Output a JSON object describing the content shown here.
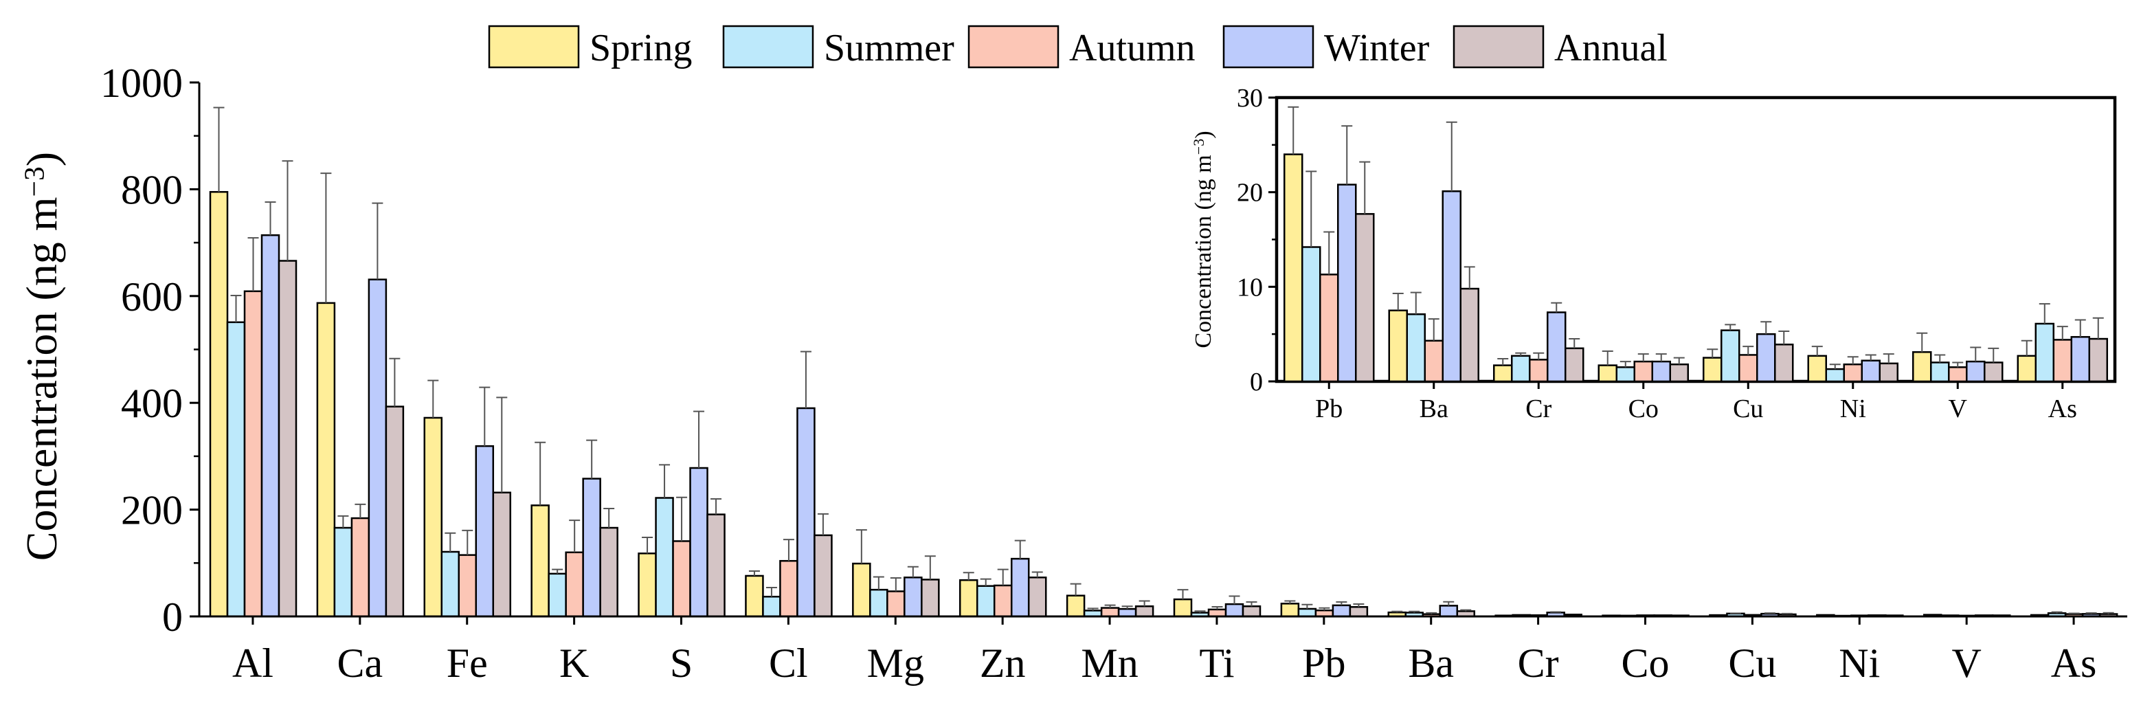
{
  "chart_data": [
    {
      "type": "bar",
      "ylabel": "Concentration (ng m⁻³)",
      "ylabel_base": "Concentration (ng m",
      "ylabel_exp": "−3",
      "ylabel_close": ")",
      "ylim": [
        0,
        1000
      ],
      "yticks": [
        0,
        200,
        400,
        600,
        800,
        1000
      ],
      "grid": false,
      "legend": "top",
      "categories": [
        "Al",
        "Ca",
        "Fe",
        "K",
        "S",
        "Cl",
        "Mg",
        "Zn",
        "Mn",
        "Ti",
        "Pb",
        "Ba",
        "Cr",
        "Co",
        "Cu",
        "Ni",
        "V",
        "As"
      ],
      "series": [
        {
          "name": "Spring",
          "color": "#FFEE99",
          "values": [
            795,
            587,
            372,
            208,
            118,
            76,
            99,
            68,
            39,
            32,
            24,
            7.5,
            1.7,
            1.7,
            2.5,
            2.7,
            3.1,
            2.7
          ],
          "errors": [
            158,
            243,
            70,
            118,
            30,
            9,
            63,
            14,
            22,
            18,
            5,
            1.8,
            0.7,
            1.5,
            0.9,
            1.0,
            2.0,
            1.6
          ]
        },
        {
          "name": "Summer",
          "color": "#BDE9FB",
          "values": [
            551,
            166,
            121,
            80,
            222,
            37,
            50,
            57,
            11,
            7,
            14.2,
            7.1,
            2.7,
            1.5,
            5.4,
            1.3,
            2.0,
            6.1
          ],
          "errors": [
            50,
            22,
            35,
            8,
            62,
            17,
            24,
            13,
            4,
            3,
            8,
            2.3,
            0.3,
            0.6,
            0.6,
            0.5,
            0.8,
            2.1
          ]
        },
        {
          "name": "Autumn",
          "color": "#FCC6B6",
          "values": [
            609,
            184,
            115,
            120,
            141,
            104,
            47,
            58,
            16,
            13,
            11.3,
            4.3,
            2.3,
            2.1,
            2.8,
            1.8,
            1.5,
            4.4
          ],
          "errors": [
            100,
            26,
            46,
            60,
            82,
            40,
            25,
            30,
            5,
            5,
            4.5,
            2.3,
            0.7,
            0.8,
            0.9,
            0.8,
            0.5,
            1.4
          ]
        },
        {
          "name": "Winter",
          "color": "#BCCBFC",
          "values": [
            714,
            631,
            319,
            258,
            278,
            390,
            73,
            108,
            14,
            23,
            20.8,
            20.1,
            7.3,
            2.1,
            5.0,
            2.2,
            2.1,
            4.7
          ],
          "errors": [
            62,
            143,
            110,
            72,
            106,
            106,
            20,
            34,
            5,
            15,
            6.2,
            7.3,
            1.0,
            0.8,
            1.3,
            0.6,
            1.5,
            1.8
          ]
        },
        {
          "name": "Annual",
          "color": "#D4C4C5",
          "values": [
            666,
            393,
            232,
            166,
            191,
            152,
            69,
            73,
            19,
            19,
            17.7,
            9.8,
            3.5,
            1.8,
            3.9,
            1.9,
            2.0,
            4.5
          ],
          "errors": [
            187,
            90,
            178,
            36,
            29,
            40,
            44,
            10,
            10,
            8,
            5.5,
            2.3,
            1.0,
            0.7,
            1.4,
            1.0,
            1.5,
            2.2
          ]
        }
      ]
    },
    {
      "type": "bar",
      "ylabel": "Concentration (ng m⁻³)",
      "ylabel_base": "Concentration (ng m",
      "ylabel_exp": "−3",
      "ylabel_close": ")",
      "ylim": [
        0,
        30
      ],
      "yticks": [
        0,
        10,
        20,
        30
      ],
      "grid": false,
      "categories": [
        "Pb",
        "Ba",
        "Cr",
        "Co",
        "Cu",
        "Ni",
        "V",
        "As"
      ]
    }
  ]
}
